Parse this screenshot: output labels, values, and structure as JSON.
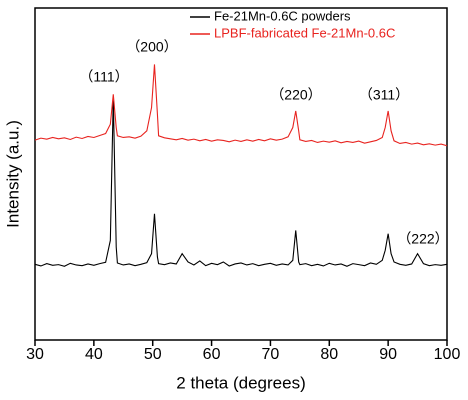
{
  "chart_data": {
    "type": "line",
    "xlabel": "2 theta (degrees)",
    "ylabel": "Intensity (a.u.)",
    "x": [
      30,
      31,
      32,
      33,
      34,
      35,
      36,
      37,
      38,
      39,
      40,
      41,
      42,
      42.8,
      43.3,
      43.8,
      44,
      45,
      46,
      47,
      48,
      49,
      49.8,
      50.3,
      50.8,
      51,
      52,
      53,
      54,
      55,
      56,
      57,
      58,
      59,
      60,
      61,
      62,
      63,
      64,
      65,
      66,
      67,
      68,
      69,
      70,
      71,
      72,
      73,
      73.8,
      74.3,
      74.8,
      75,
      76,
      77,
      78,
      79,
      80,
      81,
      82,
      83,
      84,
      85,
      86,
      87,
      88,
      89,
      89.5,
      90,
      90.5,
      91,
      92,
      93,
      94,
      95,
      96,
      97,
      98,
      99,
      100
    ],
    "series": [
      {
        "name": "Fe-21Mn-0.6C powders",
        "color": "#000000",
        "values": [
          22.8,
          22.3,
          23.0,
          22.5,
          22.7,
          22.2,
          23.1,
          22.6,
          22.4,
          22.9,
          22.5,
          23.0,
          23.4,
          30,
          73,
          28,
          23.2,
          22.6,
          22.9,
          22.4,
          22.8,
          23.3,
          26,
          38,
          25,
          23.0,
          22.7,
          23.2,
          22.9,
          26.0,
          23.5,
          22.6,
          23.8,
          22.4,
          23.1,
          22.7,
          23.5,
          22.3,
          22.9,
          23.2,
          22.6,
          23.0,
          22.4,
          22.8,
          23.1,
          22.5,
          22.9,
          22.6,
          24,
          33,
          23.5,
          22.7,
          23.0,
          22.4,
          22.8,
          22.3,
          23.1,
          22.6,
          22.9,
          22.2,
          23.0,
          22.7,
          22.4,
          23.2,
          22.8,
          24.0,
          27,
          32,
          26,
          23.5,
          22.8,
          22.5,
          22.9,
          26,
          23.0,
          22.4,
          22.7,
          22.5,
          22.8
        ]
      },
      {
        "name": "LPBF-fabricated Fe-21Mn-0.6C",
        "color": "#e8231f",
        "values": [
          60.2,
          60.8,
          60.5,
          61.0,
          60.6,
          60.9,
          60.4,
          61.1,
          60.7,
          61.3,
          61.0,
          61.6,
          62.2,
          65,
          74,
          64,
          61.5,
          61.0,
          61.2,
          60.8,
          61.4,
          63,
          70,
          83,
          68,
          61.5,
          60.9,
          60.6,
          60.3,
          60.7,
          60.2,
          60.5,
          60.0,
          60.4,
          59.9,
          60.3,
          60.1,
          59.7,
          60.2,
          59.8,
          60.3,
          59.9,
          60.4,
          60.0,
          60.6,
          60.2,
          60.5,
          61.2,
          64,
          69,
          63,
          60.3,
          59.8,
          60.1,
          59.5,
          59.9,
          59.6,
          60.0,
          59.4,
          59.8,
          59.5,
          59.9,
          59.3,
          59.7,
          60.1,
          61.0,
          64,
          69,
          63,
          60.0,
          59.2,
          59.5,
          59.0,
          59.3,
          58.8,
          59.1,
          58.7,
          59.0,
          58.5
        ]
      }
    ],
    "annotations": [
      "（111）",
      "（200）",
      "（220）",
      "（311）",
      "（222）"
    ],
    "xlim": [
      30,
      100
    ],
    "xticks": [
      30,
      40,
      50,
      60,
      70,
      80,
      90,
      100
    ],
    "ylim": [
      0,
      100
    ],
    "legend": "upper right"
  }
}
